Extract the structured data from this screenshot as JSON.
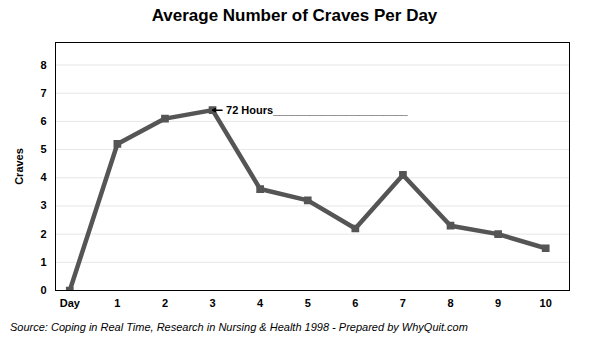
{
  "chart_data": {
    "type": "line",
    "title": "Average Number of Craves Per Day",
    "y_label": "Craves",
    "caption": "Source:  Coping in Real Time, Research in Nursing & Health 1998 - Prepared by WhyQuit.com",
    "x": [
      0,
      1,
      2,
      3,
      4,
      5,
      6,
      7,
      8,
      9,
      10
    ],
    "values": [
      0,
      5.2,
      6.1,
      6.4,
      3.6,
      3.2,
      2.2,
      4.1,
      2.3,
      2.0,
      1.5
    ],
    "color": "#555555",
    "marker": "square",
    "line_style": "solid",
    "xlim": [
      -0.3,
      10.5
    ],
    "xticks": [
      {
        "value": 0,
        "label": "Day"
      },
      1,
      2,
      3,
      4,
      5,
      6,
      7,
      8,
      9,
      10
    ],
    "ylim": [
      0,
      8.8
    ],
    "yticks": [
      0,
      1,
      2,
      3,
      4,
      5,
      6,
      7,
      8
    ],
    "grid": true,
    "annotations": [
      {
        "text": "72 Hours______________________",
        "x": 3.0,
        "y": 6.4,
        "text_x": 3.2
      }
    ]
  }
}
